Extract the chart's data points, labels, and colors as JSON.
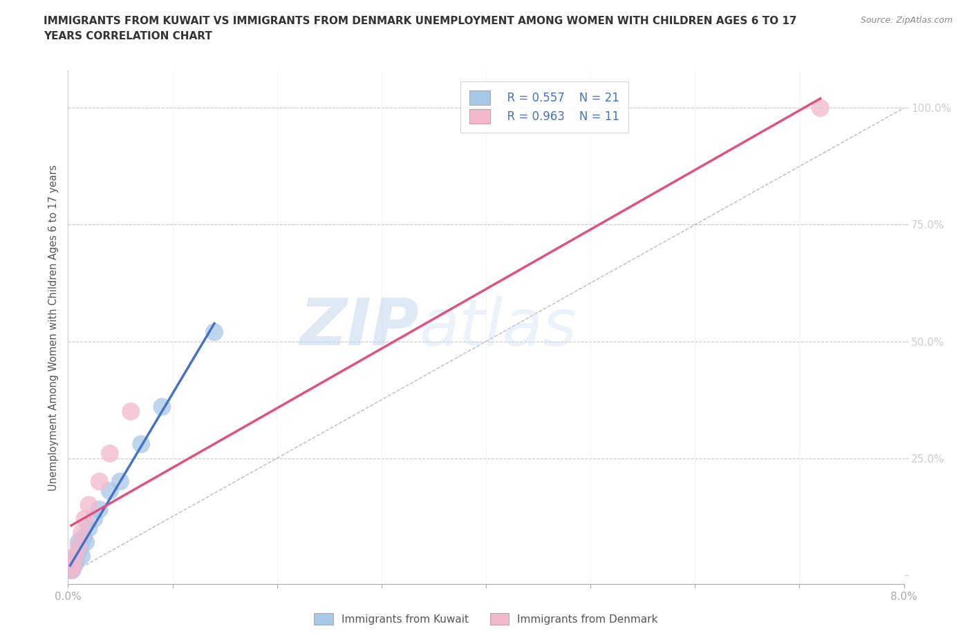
{
  "title": "IMMIGRANTS FROM KUWAIT VS IMMIGRANTS FROM DENMARK UNEMPLOYMENT AMONG WOMEN WITH CHILDREN AGES 6 TO 17\nYEARS CORRELATION CHART",
  "source_text": "Source: ZipAtlas.com",
  "ylabel": "Unemployment Among Women with Children Ages 6 to 17 years",
  "xlim": [
    0.0,
    0.08
  ],
  "ylim": [
    -0.02,
    1.08
  ],
  "kuwait_color": "#a8c8e8",
  "denmark_color": "#f4b8cc",
  "kuwait_line_color": "#4472c4",
  "denmark_line_color": "#e05080",
  "kuwait_R": 0.557,
  "kuwait_N": 21,
  "denmark_R": 0.963,
  "denmark_N": 11,
  "background_color": "#ffffff",
  "grid_color": "#c8c8c8",
  "watermark_zip": "ZIP",
  "watermark_atlas": "atlas",
  "kuwait_x": [
    0.0002,
    0.0003,
    0.0004,
    0.0005,
    0.0006,
    0.0007,
    0.0008,
    0.001,
    0.001,
    0.0012,
    0.0013,
    0.0015,
    0.0017,
    0.002,
    0.0025,
    0.003,
    0.004,
    0.005,
    0.007,
    0.009,
    0.014
  ],
  "kuwait_y": [
    0.01,
    0.02,
    0.01,
    0.03,
    0.02,
    0.04,
    0.03,
    0.05,
    0.07,
    0.06,
    0.04,
    0.08,
    0.07,
    0.1,
    0.12,
    0.14,
    0.18,
    0.2,
    0.28,
    0.36,
    0.52
  ],
  "denmark_x": [
    0.0003,
    0.0005,
    0.0007,
    0.001,
    0.0013,
    0.0016,
    0.002,
    0.003,
    0.004,
    0.006,
    0.072
  ],
  "denmark_y": [
    0.01,
    0.02,
    0.04,
    0.06,
    0.09,
    0.12,
    0.15,
    0.2,
    0.26,
    0.35,
    1.0
  ],
  "ytick_positions": [
    0.0,
    0.25,
    0.5,
    0.75,
    1.0
  ],
  "ytick_labels": [
    "",
    "25.0%",
    "50.0%",
    "75.0%",
    "100.0%"
  ],
  "xtick_positions": [
    0.0,
    0.01,
    0.02,
    0.03,
    0.04,
    0.05,
    0.06,
    0.07,
    0.08
  ],
  "xtick_labels": [
    "0.0%",
    "",
    "",
    "",
    "",
    "",
    "",
    "",
    "8.0%"
  ],
  "tick_color": "#4472c4"
}
